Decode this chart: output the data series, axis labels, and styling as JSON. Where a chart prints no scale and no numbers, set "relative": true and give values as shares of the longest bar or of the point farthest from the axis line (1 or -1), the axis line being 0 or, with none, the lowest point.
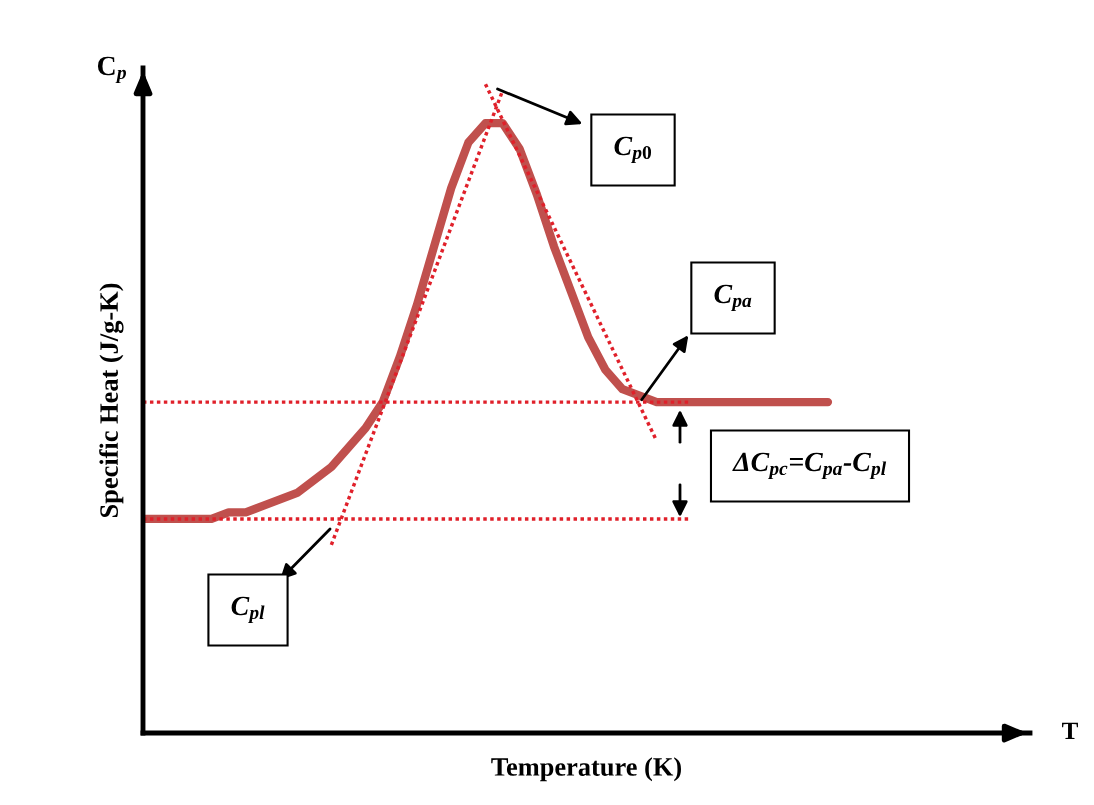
{
  "chart_data": {
    "type": "line",
    "relative": true,
    "xlabel": "Temperature (K)",
    "ylabel": "Specific Heat (J/g-K)",
    "categories": [
      null,
      null,
      null,
      null,
      null,
      null,
      null,
      null,
      null,
      null,
      null,
      null,
      null,
      null,
      null,
      null,
      null,
      null,
      null,
      null,
      null,
      null,
      null,
      null,
      null,
      null,
      null,
      null,
      null,
      null,
      null,
      null,
      null,
      null,
      null,
      null,
      null,
      null,
      null,
      null,
      null
    ],
    "series": [
      {
        "color": "#c0504d",
        "line_style": "solid",
        "values": [
          0.33,
          0.33,
          0.33,
          0.33,
          0.33,
          0.34,
          0.34,
          0.35,
          0.36,
          0.37,
          0.39,
          0.41,
          0.44,
          0.47,
          0.51,
          0.58,
          0.66,
          0.75,
          0.84,
          0.91,
          0.94,
          0.94,
          0.9,
          0.83,
          0.75,
          0.68,
          0.61,
          0.56,
          0.53,
          0.52,
          0.51,
          0.51,
          0.51,
          0.51,
          0.51,
          0.51,
          0.51,
          0.51,
          0.51,
          0.51,
          0.51
        ]
      },
      {
        "color": "#e0202a",
        "line_style": "dotted",
        "values": [
          0.33,
          null,
          null,
          null,
          null,
          null,
          null,
          null,
          null,
          null,
          null,
          null,
          null,
          null,
          null,
          null,
          null,
          null,
          null,
          null,
          null,
          null,
          null,
          null,
          null,
          null,
          null,
          null,
          null,
          null,
          null,
          null,
          0.33,
          null,
          null,
          null,
          null,
          null,
          null,
          null,
          null
        ]
      },
      {
        "color": "#e0202a",
        "line_style": "dotted",
        "values": [
          0.51,
          null,
          null,
          null,
          null,
          null,
          null,
          null,
          null,
          null,
          null,
          null,
          null,
          null,
          null,
          null,
          null,
          null,
          null,
          null,
          null,
          null,
          null,
          null,
          null,
          null,
          null,
          null,
          null,
          null,
          null,
          null,
          0.51,
          null,
          null,
          null,
          null,
          null,
          null,
          null,
          null
        ]
      },
      {
        "color": "#e0202a",
        "line_style": "dotted",
        "values": [
          null,
          null,
          null,
          null,
          null,
          null,
          null,
          null,
          null,
          null,
          null,
          0.29,
          null,
          null,
          null,
          null,
          null,
          null,
          null,
          null,
          null,
          0.99,
          null,
          null,
          null,
          null,
          null,
          null,
          null,
          null,
          null,
          null,
          null,
          null,
          null,
          null,
          null,
          null,
          null,
          null,
          null
        ]
      },
      {
        "color": "#e0202a",
        "line_style": "dotted",
        "values": [
          null,
          null,
          null,
          null,
          null,
          null,
          null,
          null,
          null,
          null,
          null,
          null,
          null,
          null,
          null,
          null,
          null,
          null,
          null,
          null,
          1.0,
          null,
          null,
          null,
          null,
          null,
          null,
          null,
          null,
          null,
          0.45,
          null,
          null,
          null,
          null,
          null,
          null,
          null,
          null,
          null,
          null
        ]
      }
    ],
    "annotations": [
      "C$_{p}$",
      "T",
      "C$_{p0}$",
      "C$_{pa}$",
      "ΔC$_{pc}$=C$_{pa}$-C$_{pl}$",
      "C$_{pl}$"
    ],
    "legend": false,
    "grid": false
  }
}
